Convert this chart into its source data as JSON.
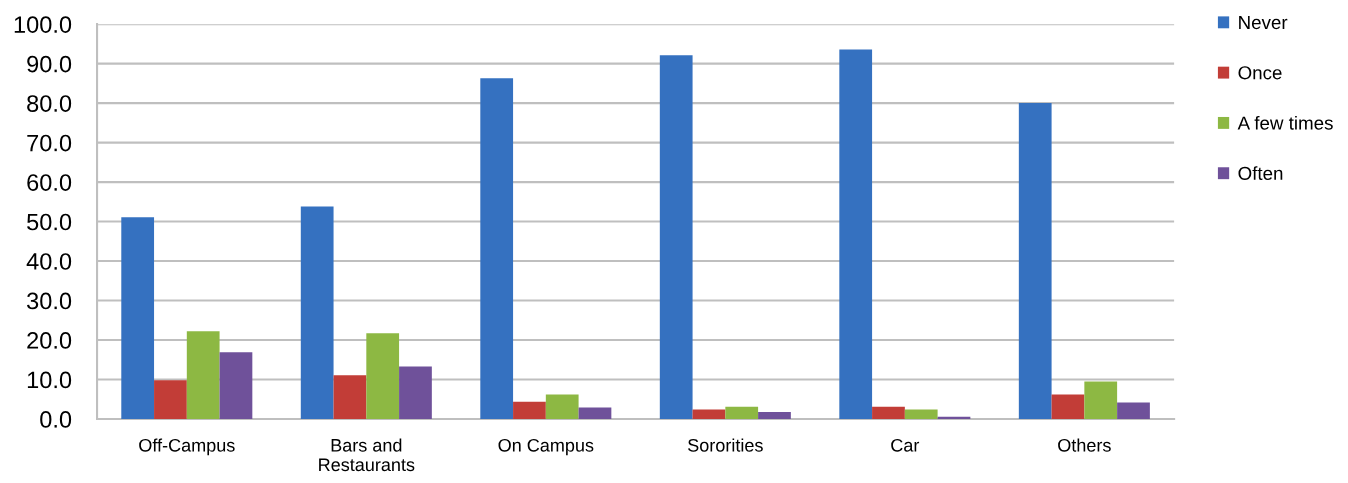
{
  "chart_data": {
    "type": "bar",
    "categories": [
      "Off-Campus",
      "Bars and\nRestaurants",
      "On Campus",
      "Sororities",
      "Car",
      "Others"
    ],
    "series": [
      {
        "name": "Never",
        "color": "#3571c0",
        "values": [
          51.1,
          53.8,
          86.3,
          92.1,
          93.6,
          80.0
        ]
      },
      {
        "name": "Once",
        "color": "#c23d37",
        "values": [
          9.8,
          11.1,
          4.4,
          2.4,
          3.1,
          6.2
        ]
      },
      {
        "name": "A few times",
        "color": "#8db843",
        "values": [
          22.2,
          21.7,
          6.2,
          3.1,
          2.4,
          9.5
        ]
      },
      {
        "name": "Often",
        "color": "#6f519a",
        "values": [
          16.9,
          13.3,
          2.9,
          1.8,
          0.6,
          4.2
        ]
      }
    ],
    "ylim": [
      0,
      100
    ],
    "yticks": [
      {
        "value": 0,
        "label": "0.0"
      },
      {
        "value": 10,
        "label": "10.0"
      },
      {
        "value": 20,
        "label": "20.0"
      },
      {
        "value": 30,
        "label": "30.0"
      },
      {
        "value": 40,
        "label": "40.0"
      },
      {
        "value": 50,
        "label": "50.0"
      },
      {
        "value": 60,
        "label": "60.0"
      },
      {
        "value": 70,
        "label": "70.0"
      },
      {
        "value": 80,
        "label": "80.0"
      },
      {
        "value": 90,
        "label": "90.0"
      },
      {
        "value": 100,
        "label": "100.0"
      }
    ],
    "grid": "y",
    "legend": "right"
  }
}
